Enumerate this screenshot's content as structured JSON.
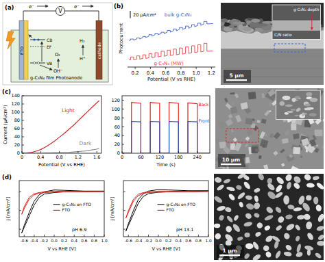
{
  "figure": {
    "panel_labels": [
      "(a)",
      "(b)",
      "(c)",
      "(d)"
    ],
    "schematic": {
      "meter": "V",
      "electrons": [
        "e⁻",
        "e⁻"
      ],
      "bands": [
        "CB",
        "EF",
        "VB"
      ],
      "anode_species": [
        "OH⁻",
        "O₂"
      ],
      "cathode_species": [
        "H⁺",
        "H₂"
      ],
      "electrode": "FTO",
      "film": "g-C₃N₄ film Photoanode",
      "cathode": "cathode"
    },
    "images": [
      {
        "scale_bar": "5 μm",
        "annotations": [
          "g-C₃N₄ depth",
          "C/N ratio"
        ]
      },
      {
        "scale_bar": "10 μm"
      },
      {
        "scale_bar": "1 μm"
      }
    ]
  },
  "chart_data": [
    {
      "type": "line",
      "y_label": "Photocurrent",
      "x_label": "Potential (V vs RHE)",
      "xlim": [
        0.1,
        1.25
      ],
      "xticks": [
        0.2,
        0.4,
        0.6,
        0.8,
        {
          "value": 1,
          "label": "1.0"
        },
        1.2
      ],
      "ylim": [
        -20,
        140
      ],
      "tick_labels": "x",
      "scale_bar": {
        "value": 20,
        "label": "20 μA/cm²"
      },
      "x": [
        0.12,
        0.14,
        0.14,
        0.18,
        0.18,
        0.22,
        0.22,
        0.26,
        0.26,
        0.3,
        0.3,
        0.34,
        0.34,
        0.38,
        0.38,
        0.42,
        0.42,
        0.46,
        0.46,
        0.5,
        0.5,
        0.54,
        0.54,
        0.58,
        0.58,
        0.62,
        0.62,
        0.66,
        0.66,
        0.7,
        0.7,
        0.74,
        0.74,
        0.78,
        0.78,
        0.82,
        0.82,
        0.86,
        0.86,
        0.9,
        0.9,
        0.94,
        0.94,
        0.98,
        0.98,
        1.02,
        1.02,
        1.06,
        1.06,
        1.1,
        1.1,
        1.14,
        1.14,
        1.22
      ],
      "series": [
        {
          "name": "bulk g-C₃N₄",
          "color": "#3d5fc8",
          "values": [
            54,
            55,
            58,
            58,
            55,
            58,
            61,
            61,
            58,
            62,
            65,
            65,
            62,
            66,
            70,
            70,
            66,
            70,
            74,
            74,
            70,
            73,
            77,
            77,
            73,
            77,
            82,
            82,
            77,
            81,
            86,
            86,
            81,
            85,
            90,
            90,
            85,
            88,
            94,
            94,
            88,
            92,
            98,
            98,
            92,
            96,
            102,
            102,
            96,
            100,
            107,
            107,
            100,
            101
          ]
        },
        {
          "name": "g-C₃N₄ (MW)",
          "color": "#e0433f",
          "values": [
            0,
            0,
            8,
            8,
            0,
            2,
            11,
            11,
            2,
            4,
            14,
            14,
            4,
            6,
            17,
            17,
            6,
            8,
            20,
            20,
            8,
            10,
            24,
            24,
            10,
            12,
            27,
            27,
            12,
            14,
            30,
            30,
            14,
            16,
            33,
            33,
            16,
            18,
            36,
            36,
            18,
            20,
            39,
            39,
            20,
            22,
            42,
            42,
            22,
            24,
            46,
            46,
            24,
            25
          ]
        }
      ]
    },
    {
      "type": "line",
      "x_label": "Potential (V vs RHE)",
      "y_label": "Current (μA/cm²)",
      "xlim": [
        0,
        1.7
      ],
      "xticks": [
        0,
        0.4,
        0.8,
        1.2,
        1.6
      ],
      "ylim": [
        0,
        140
      ],
      "yticks": [
        0,
        20,
        40,
        60,
        80,
        100,
        120,
        140
      ],
      "x": [
        0,
        0.1,
        0.2,
        0.3,
        0.4,
        0.5,
        0.6,
        0.7,
        0.8,
        0.9,
        1.0,
        1.1,
        1.2,
        1.3,
        1.4,
        1.5,
        1.6,
        1.65
      ],
      "series": [
        {
          "name": "Light",
          "color": "#d02828",
          "values": [
            0,
            0.5,
            2,
            5,
            9,
            15,
            22,
            30,
            39,
            48,
            58,
            68,
            79,
            90,
            101,
            112,
            123,
            128
          ]
        },
        {
          "name": "Dark",
          "color": "#8c8c8c",
          "values": [
            0,
            0,
            0,
            0,
            0,
            0.5,
            0.5,
            1,
            1,
            1.5,
            2,
            3,
            4,
            5,
            6,
            8,
            10,
            12
          ]
        }
      ]
    },
    {
      "type": "line",
      "x_label": "Time (s)",
      "xlim": [
        0,
        280
      ],
      "xticks": [
        0,
        60,
        120,
        180,
        240
      ],
      "ylim": [
        0,
        130
      ],
      "yticks": [
        0,
        20,
        40,
        60,
        80,
        100,
        120
      ],
      "x": [
        0,
        30,
        30,
        60,
        60,
        90,
        90,
        120,
        120,
        150,
        150,
        180,
        180,
        210,
        210,
        240,
        240,
        280
      ],
      "series": [
        {
          "name": "Back",
          "color": "#e02424",
          "values": [
            0,
            0,
            115,
            113,
            0,
            0,
            115,
            113,
            0,
            0,
            115,
            113,
            0,
            0,
            114,
            112,
            0,
            0
          ]
        },
        {
          "name": "Front",
          "color": "#2f52b8",
          "values": [
            0,
            0,
            72,
            71,
            0,
            0,
            72,
            71,
            0,
            0,
            72,
            71,
            0,
            0,
            72,
            71,
            0,
            0
          ]
        }
      ]
    },
    {
      "type": "line",
      "x_label": "V vs RHE [V]",
      "y_label": "j [mA/cm²]",
      "xlim": [
        -0.7,
        1.0
      ],
      "xticks": [
        -0.6,
        -0.4,
        -0.2,
        {
          "value": 0,
          "label": "0.0"
        },
        0.2,
        0.4,
        0.6,
        0.8,
        {
          "value": 1,
          "label": "1.0"
        }
      ],
      "ylim": [
        -1.2,
        0.3
      ],
      "yticks": [
        -1,
        -0.5,
        0
      ],
      "tick_labels": "x",
      "legend": "right",
      "annotation": "pH 6.9",
      "x": [
        1.0,
        0.6,
        0.2,
        0,
        -0.2,
        -0.3,
        -0.4,
        -0.5,
        -0.6,
        -0.65,
        -0.6,
        -0.5,
        -0.4,
        -0.3,
        -0.2,
        0,
        0.2,
        0.6,
        1.0
      ],
      "series": [
        {
          "name": "g-C₃N₄ on FTO",
          "color": "#000000",
          "values": [
            0.01,
            0,
            0,
            -0.02,
            -0.06,
            -0.15,
            -0.35,
            -0.65,
            -0.95,
            -1.1,
            -0.9,
            -0.55,
            -0.25,
            -0.08,
            0,
            0.05,
            0.04,
            0.02,
            0.02
          ]
        },
        {
          "name": "FTO",
          "color": "#e02020",
          "values": [
            0.005,
            0,
            0,
            -0.01,
            -0.02,
            -0.04,
            -0.08,
            -0.2,
            -0.45,
            -0.6,
            -0.4,
            -0.15,
            -0.05,
            -0.02,
            0,
            0.02,
            0.01,
            0.01,
            0.01
          ]
        }
      ]
    },
    {
      "type": "line",
      "x_label": "V vs RHE [V]",
      "y_label": "j [mA/cm²]",
      "xlim": [
        -0.7,
        1.0
      ],
      "xticks": [
        -0.6,
        -0.4,
        -0.2,
        {
          "value": 0,
          "label": "0.0"
        },
        0.2,
        0.4,
        0.6,
        0.8,
        {
          "value": 1,
          "label": "1.0"
        }
      ],
      "ylim": [
        -1.2,
        0.3
      ],
      "yticks": [
        -1,
        -0.5,
        0
      ],
      "tick_labels": "x",
      "legend": "right",
      "annotation": "pH 13.1",
      "x": [
        1.0,
        0.6,
        0.2,
        0,
        -0.2,
        -0.3,
        -0.4,
        -0.5,
        -0.6,
        -0.65,
        -0.6,
        -0.5,
        -0.4,
        -0.3,
        -0.2,
        0,
        0.2,
        0.6,
        1.0
      ],
      "series": [
        {
          "name": "g-C₃N₄ on FTO",
          "color": "#000000",
          "values": [
            0.02,
            0,
            0,
            -0.01,
            -0.05,
            -0.12,
            -0.3,
            -0.6,
            -0.9,
            -1.05,
            -0.85,
            -0.5,
            -0.2,
            -0.05,
            0.02,
            0.06,
            0.05,
            0.03,
            0.03
          ]
        },
        {
          "name": "FTO",
          "color": "#e02020",
          "values": [
            0.01,
            0,
            0,
            -0.01,
            -0.02,
            -0.04,
            -0.1,
            -0.25,
            -0.55,
            -0.7,
            -0.5,
            -0.2,
            -0.06,
            -0.02,
            0,
            0.02,
            0.02,
            0.01,
            0.01
          ]
        }
      ]
    }
  ]
}
